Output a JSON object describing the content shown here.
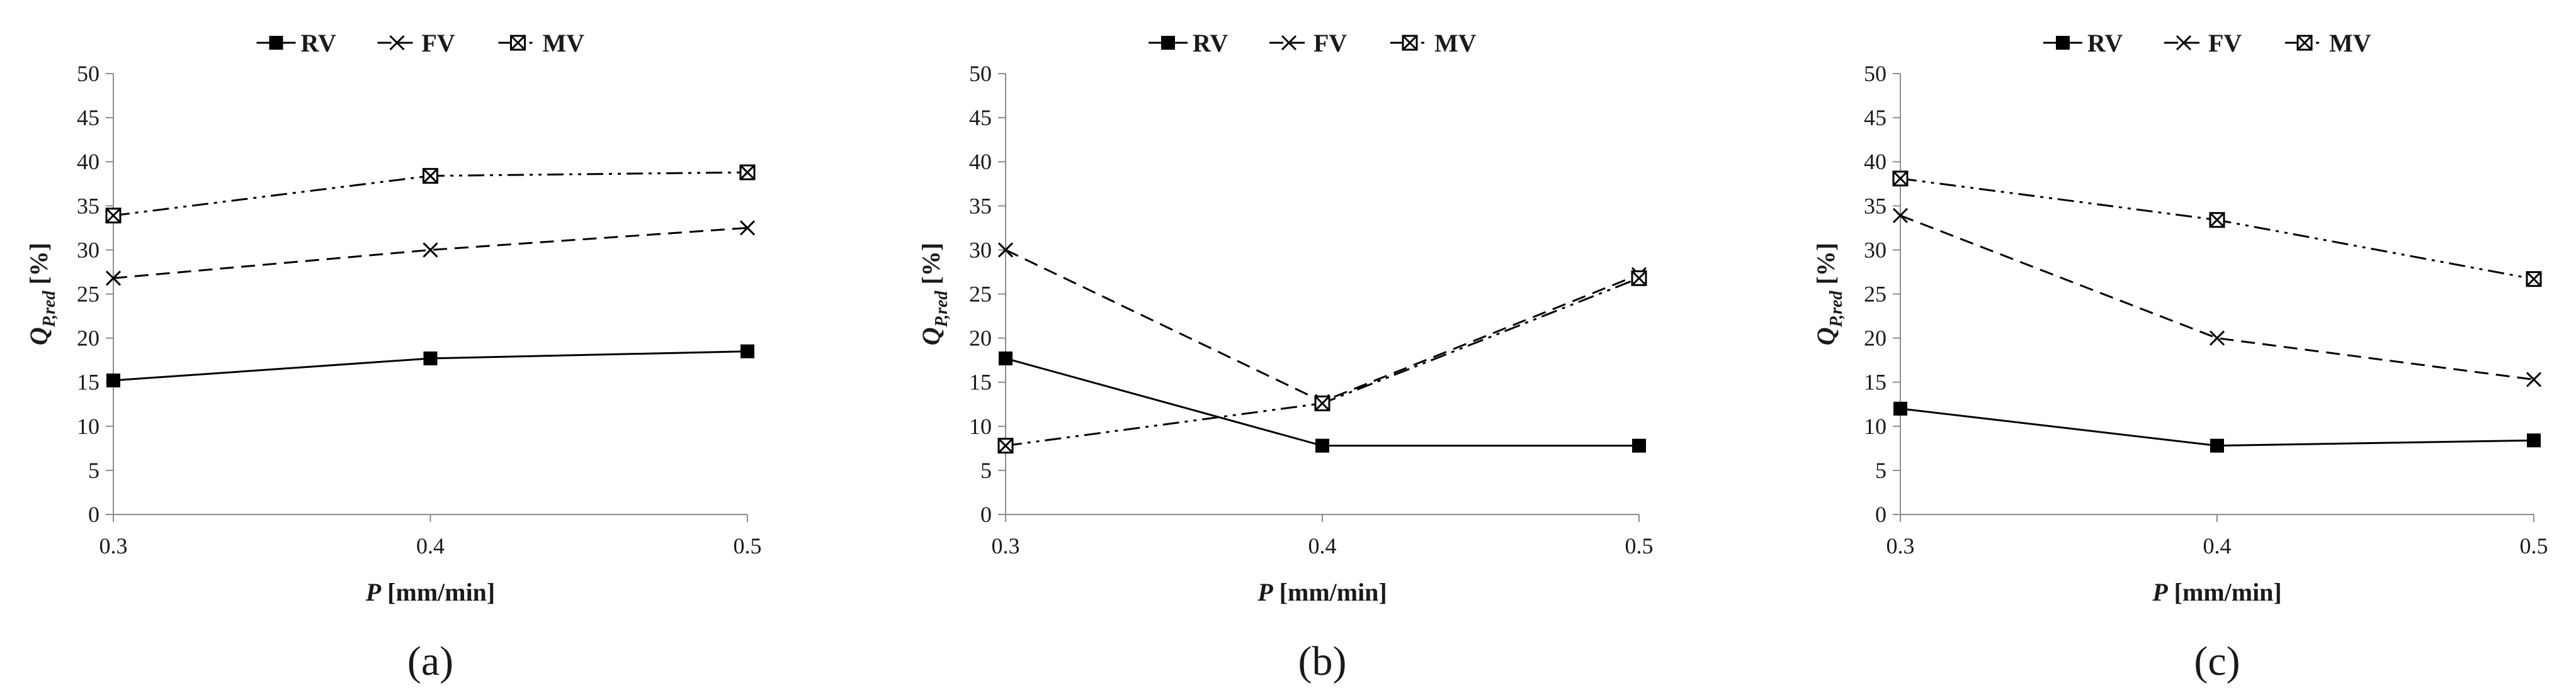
{
  "chart_data": [
    {
      "type": "line",
      "panel_label": "(a)",
      "xlabel_symbol": "P",
      "xlabel_unit": " [mm/min]",
      "ylabel_symbol": "Q",
      "ylabel_subscript": "P,red",
      "ylabel_unit": " [%]",
      "x": [
        0.3,
        0.4,
        0.5
      ],
      "x_tick_labels": [
        "0.3",
        "0.4",
        "0.5"
      ],
      "ylim": [
        0,
        50
      ],
      "y_ticks": [
        0,
        5,
        10,
        15,
        20,
        25,
        30,
        35,
        40,
        45,
        50
      ],
      "legend_position": "top",
      "series": [
        {
          "name": "RV",
          "values": [
            15.2,
            17.7,
            18.5
          ]
        },
        {
          "name": "FV",
          "values": [
            26.8,
            30.0,
            32.5
          ]
        },
        {
          "name": "MV",
          "values": [
            33.9,
            38.4,
            38.8
          ]
        }
      ]
    },
    {
      "type": "line",
      "panel_label": "(b)",
      "xlabel_symbol": "P",
      "xlabel_unit": " [mm/min]",
      "ylabel_symbol": "Q",
      "ylabel_subscript": "P,red",
      "ylabel_unit": " [%]",
      "x": [
        0.3,
        0.4,
        0.5
      ],
      "x_tick_labels": [
        "0.3",
        "0.4",
        "0.5"
      ],
      "ylim": [
        0,
        50
      ],
      "y_ticks": [
        0,
        5,
        10,
        15,
        20,
        25,
        30,
        35,
        40,
        45,
        50
      ],
      "legend_position": "top",
      "series": [
        {
          "name": "RV",
          "values": [
            17.7,
            7.8,
            7.8
          ]
        },
        {
          "name": "FV",
          "values": [
            30.0,
            12.8,
            27.2
          ]
        },
        {
          "name": "MV",
          "values": [
            7.8,
            12.6,
            26.8
          ]
        }
      ]
    },
    {
      "type": "line",
      "panel_label": "(c)",
      "xlabel_symbol": "P",
      "xlabel_unit": " [mm/min]",
      "ylabel_symbol": "Q",
      "ylabel_subscript": "P,red",
      "ylabel_unit": " [%]",
      "x": [
        0.3,
        0.4,
        0.5
      ],
      "x_tick_labels": [
        "0.3",
        "0.4",
        "0.5"
      ],
      "ylim": [
        0,
        50
      ],
      "y_ticks": [
        0,
        5,
        10,
        15,
        20,
        25,
        30,
        35,
        40,
        45,
        50
      ],
      "legend_position": "top",
      "series": [
        {
          "name": "RV",
          "values": [
            12.0,
            7.8,
            8.4
          ]
        },
        {
          "name": "FV",
          "values": [
            33.9,
            20.0,
            15.3
          ]
        },
        {
          "name": "MV",
          "values": [
            38.1,
            33.4,
            26.7
          ]
        }
      ]
    }
  ]
}
